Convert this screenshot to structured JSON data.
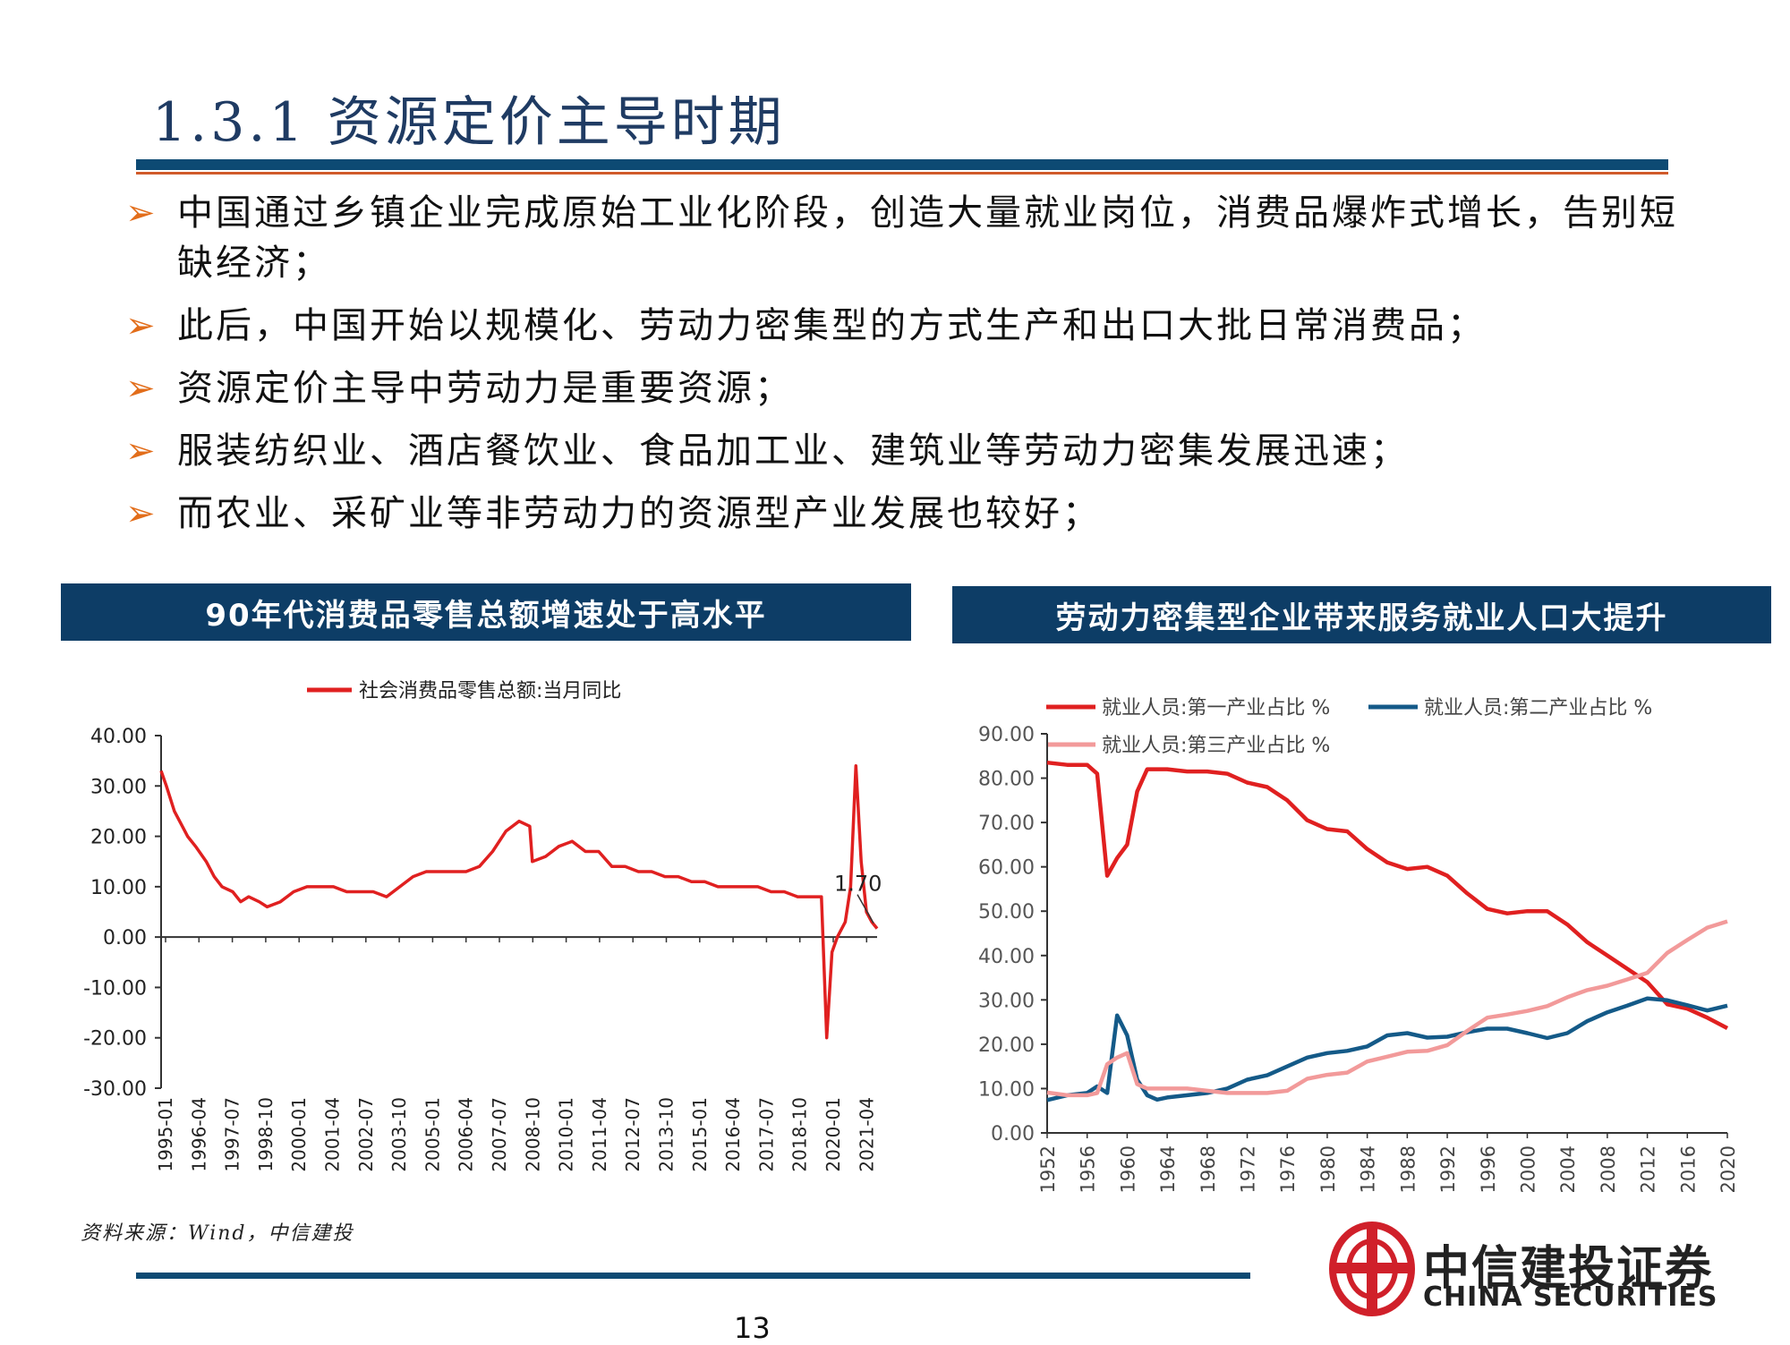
{
  "header": {
    "title": "1.3.1  资源定价主导时期"
  },
  "bullets": [
    "中国通过乡镇企业完成原始工业化阶段，创造大量就业岗位，消费品爆炸式增长，告别短缺经济；",
    "此后，中国开始以规模化、劳动力密集型的方式生产和出口大批日常消费品；",
    "资源定价主导中劳动力是重要资源；",
    "服装纺织业、酒店餐饮业、食品加工业、建筑业等劳动力密集发展迅速；",
    "而农业、采矿业等非劳动力的资源型产业发展也较好；"
  ],
  "panels": {
    "left_title": "90年代消费品零售总额增速处于高水平",
    "right_title": "劳动力密集型企业带来服务就业人口大提升"
  },
  "footer": {
    "source": "资料来源：Wind，中信建投",
    "page_number": "13",
    "logo_cn": "中信建投证券",
    "logo_en": "CHINA SECURITIES"
  },
  "colors": {
    "accent_blue": "#0d3d66",
    "series_red": "#e02020",
    "series_navy": "#145a88",
    "series_pink": "#f29a9a",
    "arrow_orange": "#e26d1a"
  },
  "chart_data": [
    {
      "type": "line",
      "legend": [
        "社会消费品零售总额:当月同比"
      ],
      "ylim": [
        -30,
        40
      ],
      "yticks": [
        "40.00",
        "30.00",
        "20.00",
        "10.00",
        "0.00",
        "-10.00",
        "-20.00",
        "-30.00"
      ],
      "xticks": [
        "1995-01",
        "1996-04",
        "1997-07",
        "1998-10",
        "2000-01",
        "2001-04",
        "2002-07",
        "2003-10",
        "2005-01",
        "2006-04",
        "2007-07",
        "2008-10",
        "2010-01",
        "2011-04",
        "2012-07",
        "2013-10",
        "2015-01",
        "2016-04",
        "2017-07",
        "2018-10",
        "2020-01",
        "2021-04"
      ],
      "annotation": "1.70",
      "series": [
        {
          "name": "社会消费品零售总额:当月同比",
          "x": [
            1995.0,
            1995.2,
            1995.5,
            1995.8,
            1996.0,
            1996.3,
            1996.7,
            1997.0,
            1997.3,
            1997.7,
            1998.0,
            1998.3,
            1998.7,
            1999.0,
            1999.5,
            2000.0,
            2000.5,
            2001.0,
            2001.5,
            2002.0,
            2002.5,
            2003.0,
            2003.5,
            2004.0,
            2004.5,
            2005.0,
            2005.5,
            2006.0,
            2006.5,
            2007.0,
            2007.5,
            2008.0,
            2008.5,
            2008.9,
            2009.0,
            2009.5,
            2010.0,
            2010.5,
            2011.0,
            2011.5,
            2012.0,
            2012.5,
            2013.0,
            2013.5,
            2014.0,
            2014.5,
            2015.0,
            2015.5,
            2016.0,
            2016.5,
            2017.0,
            2017.5,
            2018.0,
            2018.5,
            2019.0,
            2019.5,
            2019.9,
            2020.1,
            2020.3,
            2020.5,
            2020.8,
            2021.0,
            2021.2,
            2021.4,
            2021.6,
            2021.8,
            2022.0
          ],
          "y": [
            33,
            30,
            25,
            22,
            20,
            18,
            15,
            12,
            10,
            9,
            7,
            8,
            7,
            6,
            7,
            9,
            10,
            10,
            10,
            9,
            9,
            9,
            8,
            10,
            12,
            13,
            13,
            13,
            13,
            14,
            17,
            21,
            23,
            22,
            15,
            16,
            18,
            19,
            17,
            17,
            14,
            14,
            13,
            13,
            12,
            12,
            11,
            11,
            10,
            10,
            10,
            10,
            9,
            9,
            8,
            8,
            8,
            -20,
            -3,
            0,
            3,
            10,
            34,
            15,
            5,
            3,
            1.7
          ]
        }
      ]
    },
    {
      "type": "line",
      "legend": [
        "就业人员:第一产业占比 %",
        "就业人员:第二产业占比 %",
        "就业人员:第三产业占比 %"
      ],
      "ylim": [
        0,
        90
      ],
      "yticks": [
        "90.00",
        "80.00",
        "70.00",
        "60.00",
        "50.00",
        "40.00",
        "30.00",
        "20.00",
        "10.00",
        "0.00"
      ],
      "xticks": [
        "1952",
        "1956",
        "1960",
        "1964",
        "1968",
        "1972",
        "1976",
        "1980",
        "1984",
        "1988",
        "1992",
        "1996",
        "2000",
        "2004",
        "2008",
        "2012",
        "2016",
        "2020"
      ],
      "series": [
        {
          "name": "就业人员:第一产业占比 %",
          "x": [
            1952,
            1954,
            1956,
            1957,
            1958,
            1959,
            1960,
            1961,
            1962,
            1963,
            1964,
            1966,
            1968,
            1970,
            1972,
            1974,
            1976,
            1978,
            1980,
            1982,
            1984,
            1986,
            1988,
            1990,
            1992,
            1994,
            1996,
            1998,
            2000,
            2002,
            2004,
            2006,
            2008,
            2010,
            2012,
            2014,
            2016,
            2018,
            2020
          ],
          "y": [
            83.5,
            83,
            83,
            81,
            58,
            62,
            65,
            77,
            82,
            82,
            82,
            81.5,
            81.5,
            81,
            79,
            78,
            75,
            70.5,
            68.5,
            68,
            64,
            61,
            59.5,
            60,
            58,
            54,
            50.5,
            49.5,
            50,
            50,
            47,
            43,
            40,
            37,
            34,
            29,
            28,
            26,
            23.6
          ]
        },
        {
          "name": "就业人员:第二产业占比 %",
          "x": [
            1952,
            1954,
            1956,
            1957,
            1958,
            1959,
            1960,
            1961,
            1962,
            1963,
            1964,
            1966,
            1968,
            1970,
            1972,
            1974,
            1976,
            1978,
            1980,
            1982,
            1984,
            1986,
            1988,
            1990,
            1992,
            1994,
            1996,
            1998,
            2000,
            2002,
            2004,
            2006,
            2008,
            2010,
            2012,
            2014,
            2016,
            2018,
            2020
          ],
          "y": [
            7.4,
            8.5,
            9,
            10.5,
            9,
            26.5,
            22,
            12,
            8.5,
            7.5,
            8,
            8.5,
            9,
            10,
            12,
            13,
            15,
            17,
            18,
            18.5,
            19.5,
            22,
            22.5,
            21.5,
            21.7,
            22.7,
            23.5,
            23.5,
            22.5,
            21.4,
            22.5,
            25.2,
            27.2,
            28.7,
            30.3,
            29.9,
            28.8,
            27.6,
            28.7
          ]
        },
        {
          "name": "就业人员:第三产业占比 %",
          "x": [
            1952,
            1954,
            1956,
            1957,
            1958,
            1959,
            1960,
            1961,
            1962,
            1963,
            1964,
            1966,
            1968,
            1970,
            1972,
            1974,
            1976,
            1978,
            1980,
            1982,
            1984,
            1986,
            1988,
            1990,
            1992,
            1994,
            1996,
            1998,
            2000,
            2002,
            2004,
            2006,
            2008,
            2010,
            2012,
            2014,
            2016,
            2018,
            2020
          ],
          "y": [
            9.1,
            8.5,
            8.5,
            9,
            15.5,
            17,
            18,
            11,
            10,
            10,
            10,
            10,
            9.5,
            9,
            9,
            9,
            9.5,
            12.2,
            13.1,
            13.6,
            16.1,
            17.2,
            18.3,
            18.5,
            19.8,
            23,
            26,
            26.7,
            27.5,
            28.6,
            30.6,
            32.2,
            33.2,
            34.6,
            36.1,
            40.6,
            43.5,
            46.3,
            47.7
          ]
        }
      ]
    }
  ]
}
